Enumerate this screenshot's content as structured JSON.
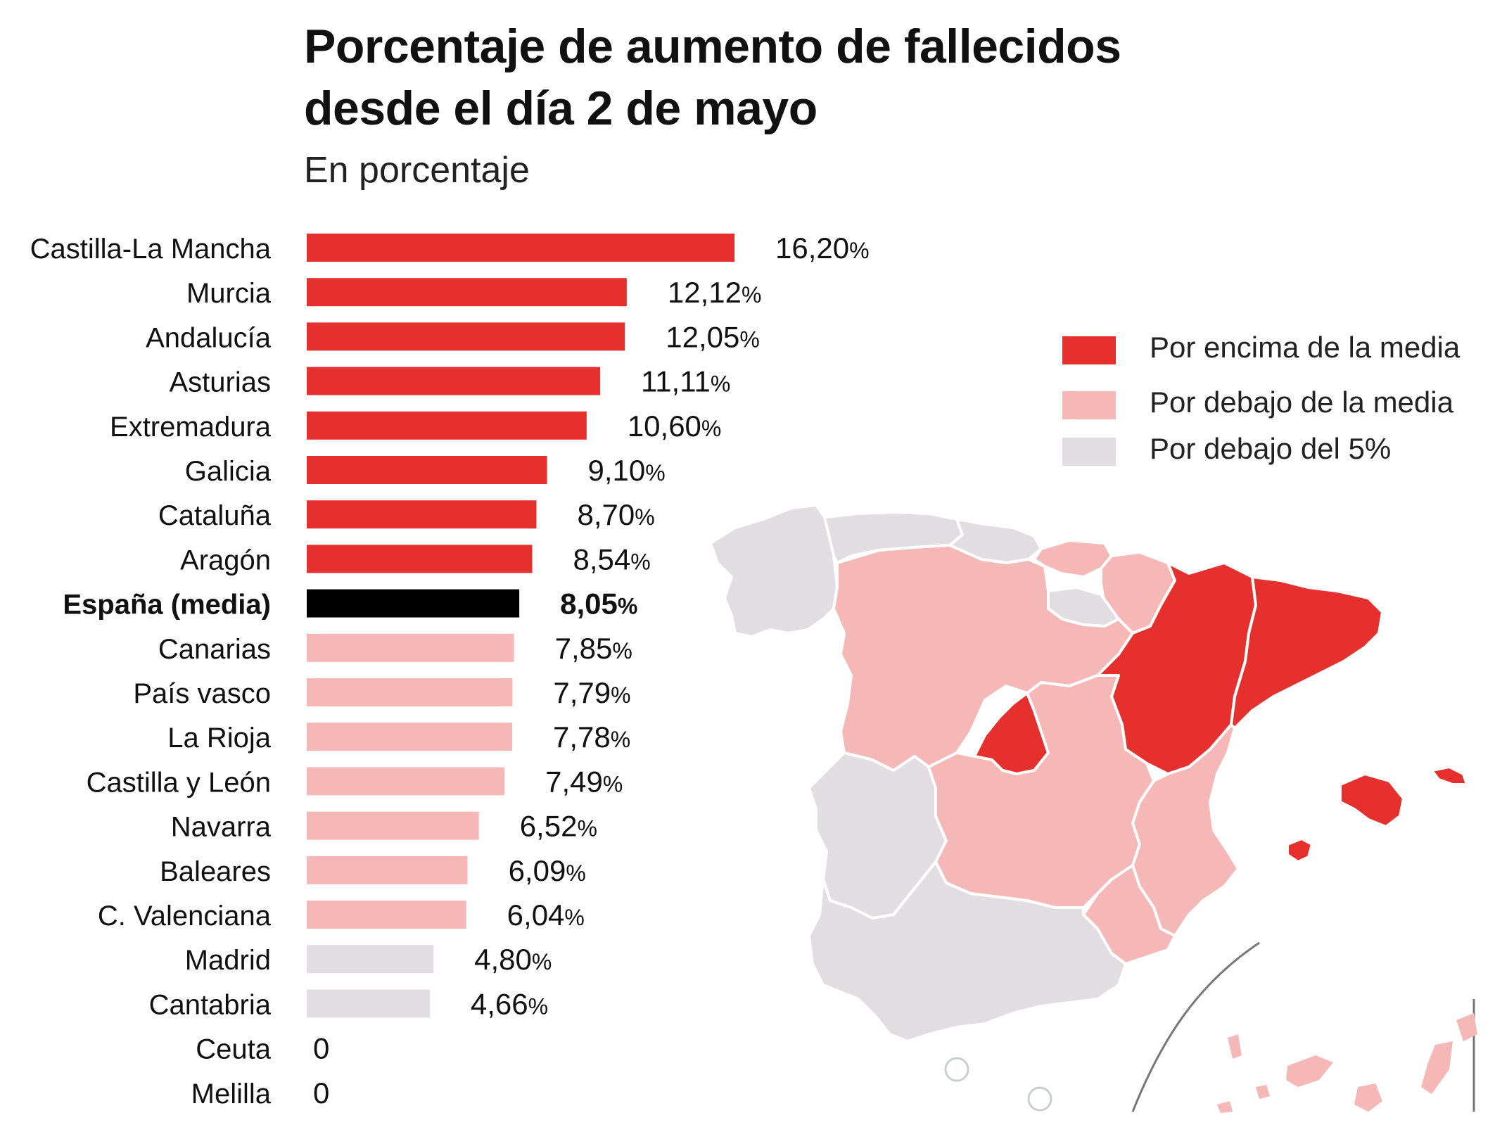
{
  "title_line1": "Porcentaje de aumento de fallecidos",
  "title_line2": "desde el día 2 de mayo",
  "subtitle": "En porcentaje",
  "colors": {
    "above": "#e5302e",
    "below": "#f5b8b7",
    "under5": "#e2dde1",
    "average": "#000000"
  },
  "legend": [
    {
      "label": "Por encima de la media",
      "color": "#e5302e"
    },
    {
      "label": "Por debajo de la media",
      "color": "#f5b8b7"
    },
    {
      "label": "Por debajo del 5%",
      "color": "#e2dde1"
    }
  ],
  "chart_data": {
    "type": "bar",
    "orientation": "horizontal",
    "categories": [
      "Castilla-La Mancha",
      "Murcia",
      "Andalucía",
      "Asturias",
      "Extremadura",
      "Galicia",
      "Cataluña",
      "Aragón",
      "España (media)",
      "Canarias",
      "País vasco",
      "La Rioja",
      "Castilla y León",
      "Navarra",
      "Baleares",
      "C. Valenciana",
      "Madrid",
      "Cantabria",
      "Ceuta",
      "Melilla"
    ],
    "values": [
      16.2,
      12.12,
      12.05,
      11.11,
      10.6,
      9.1,
      8.7,
      8.54,
      8.05,
      7.85,
      7.79,
      7.78,
      7.49,
      6.52,
      6.09,
      6.04,
      4.8,
      4.66,
      0,
      0
    ],
    "value_labels": [
      "16,20",
      "12,12",
      "12,05",
      "11,11",
      "10,60",
      "9,10",
      "8,70",
      "8,54",
      "8,05",
      "7,85",
      "7,79",
      "7,78",
      "7,49",
      "6,52",
      "6,09",
      "6,04",
      "4,80",
      "4,66",
      "0",
      "0"
    ],
    "unit": "%",
    "groups": [
      "above",
      "above",
      "above",
      "above",
      "above",
      "above",
      "above",
      "above",
      "average",
      "below",
      "below",
      "below",
      "below",
      "below",
      "below",
      "below",
      "under5",
      "under5",
      "under5",
      "under5"
    ],
    "xlim": [
      0,
      16.2
    ]
  }
}
